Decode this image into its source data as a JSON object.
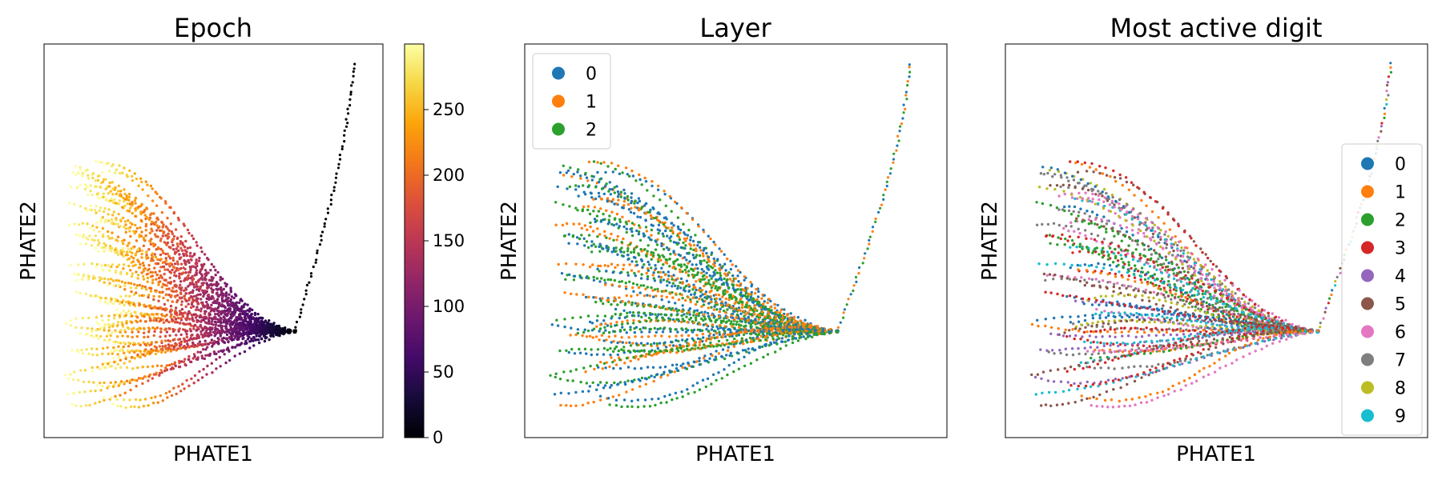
{
  "chart_data": [
    {
      "type": "scatter",
      "title": "Epoch",
      "xlabel": "PHATE1",
      "ylabel": "PHATE2",
      "color_encoding": "continuous",
      "colormap": "inferno",
      "colorbar": {
        "min": 0,
        "max": 300,
        "ticks": [
          0,
          50,
          100,
          150,
          200,
          250
        ]
      }
    },
    {
      "type": "scatter",
      "title": "Layer",
      "xlabel": "PHATE1",
      "ylabel": "PHATE2",
      "color_encoding": "categorical",
      "legend_position": "upper-left",
      "legend": [
        {
          "label": "0",
          "color": "#1f77b4"
        },
        {
          "label": "1",
          "color": "#ff7f0e"
        },
        {
          "label": "2",
          "color": "#2ca02c"
        }
      ]
    },
    {
      "type": "scatter",
      "title": "Most active digit",
      "xlabel": "PHATE1",
      "ylabel": "PHATE2",
      "color_encoding": "categorical",
      "legend_position": "right",
      "legend": [
        {
          "label": "0",
          "color": "#1f77b4"
        },
        {
          "label": "1",
          "color": "#ff7f0e"
        },
        {
          "label": "2",
          "color": "#2ca02c"
        },
        {
          "label": "3",
          "color": "#d62728"
        },
        {
          "label": "4",
          "color": "#9467bd"
        },
        {
          "label": "5",
          "color": "#8c564b"
        },
        {
          "label": "6",
          "color": "#e377c2"
        },
        {
          "label": "7",
          "color": "#7f7f7f"
        },
        {
          "label": "8",
          "color": "#bcbd22"
        },
        {
          "label": "9",
          "color": "#17becf"
        }
      ]
    }
  ]
}
